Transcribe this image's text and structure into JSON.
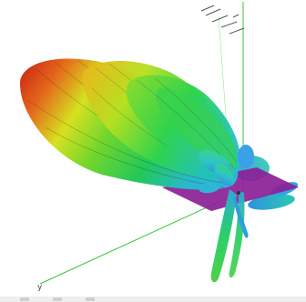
{
  "viewer": {
    "axis_label": "y",
    "colors": {
      "background": "#ffffff",
      "axis_green": "#39c43b",
      "ground_plane": "#8b1f97",
      "lobe_red": "#d3261c",
      "lobe_orange": "#ef8a1c",
      "lobe_yellow": "#d9e61f",
      "lobe_green": "#2bd14a",
      "lobe_cyan": "#25c6c9",
      "lobe_blue": "#3a86ff"
    },
    "toolbar_items": [
      "toolbar-item-1",
      "toolbar-item-2",
      "toolbar-item-3"
    ]
  }
}
